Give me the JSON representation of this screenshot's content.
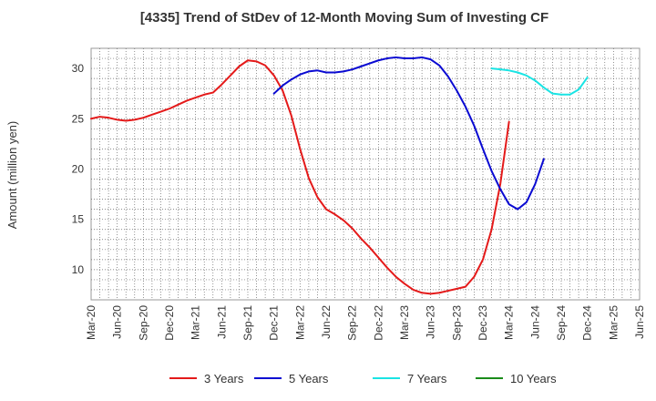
{
  "chart_data": {
    "type": "line",
    "title": "[4335]  Trend of StDev of 12-Month Moving Sum of Investing CF",
    "xlabel": "",
    "ylabel": "Amount (million yen)",
    "ylim": [
      7,
      32
    ],
    "yticks": [
      10,
      15,
      20,
      25,
      30
    ],
    "xticks": [
      "Mar-20",
      "Jun-20",
      "Sep-20",
      "Dec-20",
      "Mar-21",
      "Jun-21",
      "Sep-21",
      "Dec-21",
      "Mar-22",
      "Jun-22",
      "Sep-22",
      "Dec-22",
      "Mar-23",
      "Jun-23",
      "Sep-23",
      "Dec-23",
      "Mar-24",
      "Jun-24",
      "Sep-24",
      "Dec-24",
      "Mar-25",
      "Jun-25"
    ],
    "grid": true,
    "legend_position": "bottom",
    "series": [
      {
        "name": "3 Years",
        "color": "#e41a1a",
        "start_index": 0,
        "values": [
          25.0,
          25.2,
          25.1,
          24.9,
          24.8,
          24.9,
          25.1,
          25.4,
          25.7,
          26.0,
          26.4,
          26.8,
          27.1,
          27.4,
          27.6,
          28.4,
          29.3,
          30.2,
          30.8,
          30.7,
          30.3,
          29.3,
          27.8,
          25.3,
          22.0,
          19.1,
          17.2,
          16.0,
          15.5,
          14.9,
          14.1,
          13.1,
          12.2,
          11.2,
          10.2,
          9.3,
          8.6,
          8.0,
          7.7,
          7.6,
          7.7,
          7.9,
          8.1,
          8.3,
          9.3,
          11.0,
          14.0,
          18.5,
          24.7
        ]
      },
      {
        "name": "5 Years",
        "color": "#0a0ad2",
        "start_index": 21,
        "values": [
          27.5,
          28.3,
          28.9,
          29.4,
          29.7,
          29.8,
          29.6,
          29.6,
          29.7,
          29.9,
          30.2,
          30.5,
          30.8,
          31.0,
          31.1,
          31.0,
          31.0,
          31.1,
          30.9,
          30.3,
          29.2,
          27.8,
          26.2,
          24.3,
          22.0,
          19.8,
          18.0,
          16.5,
          16.0,
          16.7,
          18.5,
          21.0
        ]
      },
      {
        "name": "7 Years",
        "color": "#1ae4e4",
        "start_index": 46,
        "values": [
          30.0,
          29.9,
          29.8,
          29.6,
          29.3,
          28.8,
          28.1,
          27.5,
          27.4,
          27.4,
          27.9,
          29.1
        ]
      },
      {
        "name": "10 Years",
        "color": "#1a8c1a",
        "start_index": 0,
        "values": []
      }
    ]
  }
}
